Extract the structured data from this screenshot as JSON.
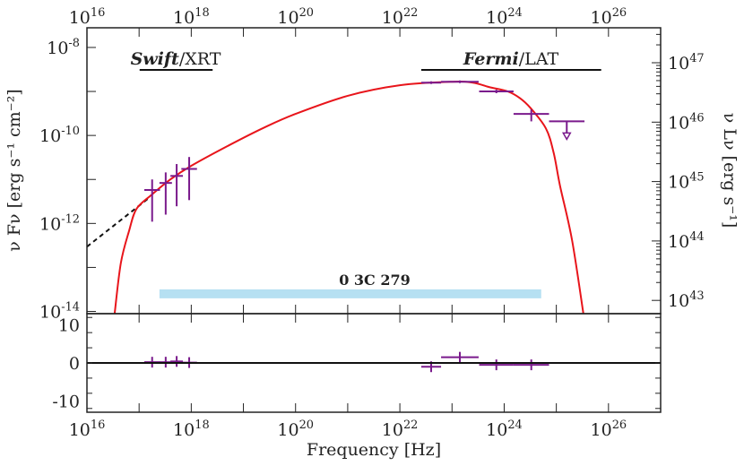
{
  "chart_data": {
    "type": "scatter",
    "x_scale": "log",
    "y_scale": "log",
    "xlim": [
      1e+16,
      1e+27
    ],
    "ylim": [
      8.9e-15,
      2.8e-08
    ],
    "residual_ylim": [
      -13,
      13
    ],
    "xlabel": "Frequency [Hz]",
    "ylabel": "ν Fν [erg s⁻¹ cm⁻²]",
    "ylabel_right": "ν Lν [erg s⁻¹]",
    "x_ticks": [
      "10^16",
      "10^18",
      "10^20",
      "10^22",
      "10^24",
      "10^26"
    ],
    "x_tick_values": [
      16,
      18,
      20,
      22,
      24,
      26
    ],
    "y_ticks": [
      "10^-8",
      "10^-10",
      "10^-12",
      "10^-14"
    ],
    "y_tick_values": [
      -8,
      -10,
      -12,
      -14
    ],
    "y_right_ticks": [
      "10^47",
      "10^46",
      "10^45",
      "10^44",
      "10^43"
    ],
    "y_right_tick_log_L": [
      47,
      46,
      45,
      44,
      43
    ],
    "residual_ticks": [
      "10",
      "0",
      "-10"
    ],
    "residual_tick_values": [
      10,
      0,
      -10
    ],
    "annotations": {
      "swift": {
        "italic": "Swift",
        "rest": "/XRT",
        "range_log_nu": [
          17.01,
          18.41
        ]
      },
      "fermi": {
        "italic": "Fermi",
        "rest": "/LAT",
        "range_log_nu": [
          22.41,
          25.86
        ]
      },
      "source": {
        "text": "0 3C 279",
        "band_log_nu": [
          17.39,
          24.71
        ],
        "band_log_flux": -13.6
      }
    },
    "colors": {
      "model": "#e8151b",
      "data": "#7a1a8c",
      "extrapolation": "#111111",
      "band": "#b6e0f2"
    },
    "data_points": [
      {
        "instrument": "Swift/XRT",
        "log_nu": 17.25,
        "log_nu_err": 0.15,
        "log_flux": -11.24,
        "log_flux_lo": -11.96,
        "log_flux_hi": -11.0,
        "residual": 0.2
      },
      {
        "instrument": "Swift/XRT",
        "log_nu": 17.51,
        "log_nu_err": 0.12,
        "log_flux": -11.08,
        "log_flux_lo": -11.8,
        "log_flux_hi": -10.84,
        "residual": 0.2
      },
      {
        "instrument": "Swift/XRT",
        "log_nu": 17.72,
        "log_nu_err": 0.12,
        "log_flux": -10.92,
        "log_flux_lo": -11.61,
        "log_flux_hi": -10.65,
        "residual": 0.4
      },
      {
        "instrument": "Swift/XRT",
        "log_nu": 17.96,
        "log_nu_err": 0.15,
        "log_flux": -10.76,
        "log_flux_lo": -11.47,
        "log_flux_hi": -10.49,
        "residual": 0.1
      },
      {
        "instrument": "Fermi/LAT",
        "log_nu": 22.6,
        "log_nu_err": 0.19,
        "log_flux": -8.8,
        "log_flux_lo": -8.83,
        "log_flux_hi": -8.77,
        "residual": -1.0
      },
      {
        "instrument": "Fermi/LAT",
        "log_nu": 23.15,
        "log_nu_err": 0.36,
        "log_flux": -8.78,
        "log_flux_lo": -8.81,
        "log_flux_hi": -8.75,
        "residual": 1.5
      },
      {
        "instrument": "Fermi/LAT",
        "log_nu": 23.85,
        "log_nu_err": 0.33,
        "log_flux": -9.0,
        "log_flux_lo": -9.04,
        "log_flux_hi": -8.96,
        "residual": -0.5
      },
      {
        "instrument": "Fermi/LAT",
        "log_nu": 24.52,
        "log_nu_err": 0.34,
        "log_flux": -9.51,
        "log_flux_lo": -9.68,
        "log_flux_hi": -9.41,
        "residual": -0.5
      },
      {
        "instrument": "Fermi/LAT",
        "log_nu": 25.2,
        "log_nu_err": 0.34,
        "log_flux": -9.68,
        "upper_limit": true
      }
    ],
    "model_curve": [
      [
        16.53,
        -14.06
      ],
      [
        16.65,
        -12.9
      ],
      [
        16.81,
        -12.16
      ],
      [
        16.95,
        -11.67
      ],
      [
        17.24,
        -11.35
      ],
      [
        17.6,
        -11.0
      ],
      [
        18.0,
        -10.69
      ],
      [
        18.73,
        -10.22
      ],
      [
        19.4,
        -9.82
      ],
      [
        20.0,
        -9.51
      ],
      [
        21.0,
        -9.1
      ],
      [
        22.0,
        -8.86
      ],
      [
        23.0,
        -8.78
      ],
      [
        23.4,
        -8.8
      ],
      [
        23.71,
        -8.9
      ],
      [
        24.07,
        -9.0
      ],
      [
        24.3,
        -9.15
      ],
      [
        24.5,
        -9.37
      ],
      [
        24.8,
        -9.84
      ],
      [
        24.95,
        -10.4
      ],
      [
        25.07,
        -11.14
      ],
      [
        25.3,
        -12.37
      ],
      [
        25.52,
        -14.06
      ]
    ],
    "extrapolation_curve": [
      [
        16.0,
        -12.53
      ],
      [
        17.2,
        -11.41
      ]
    ]
  }
}
